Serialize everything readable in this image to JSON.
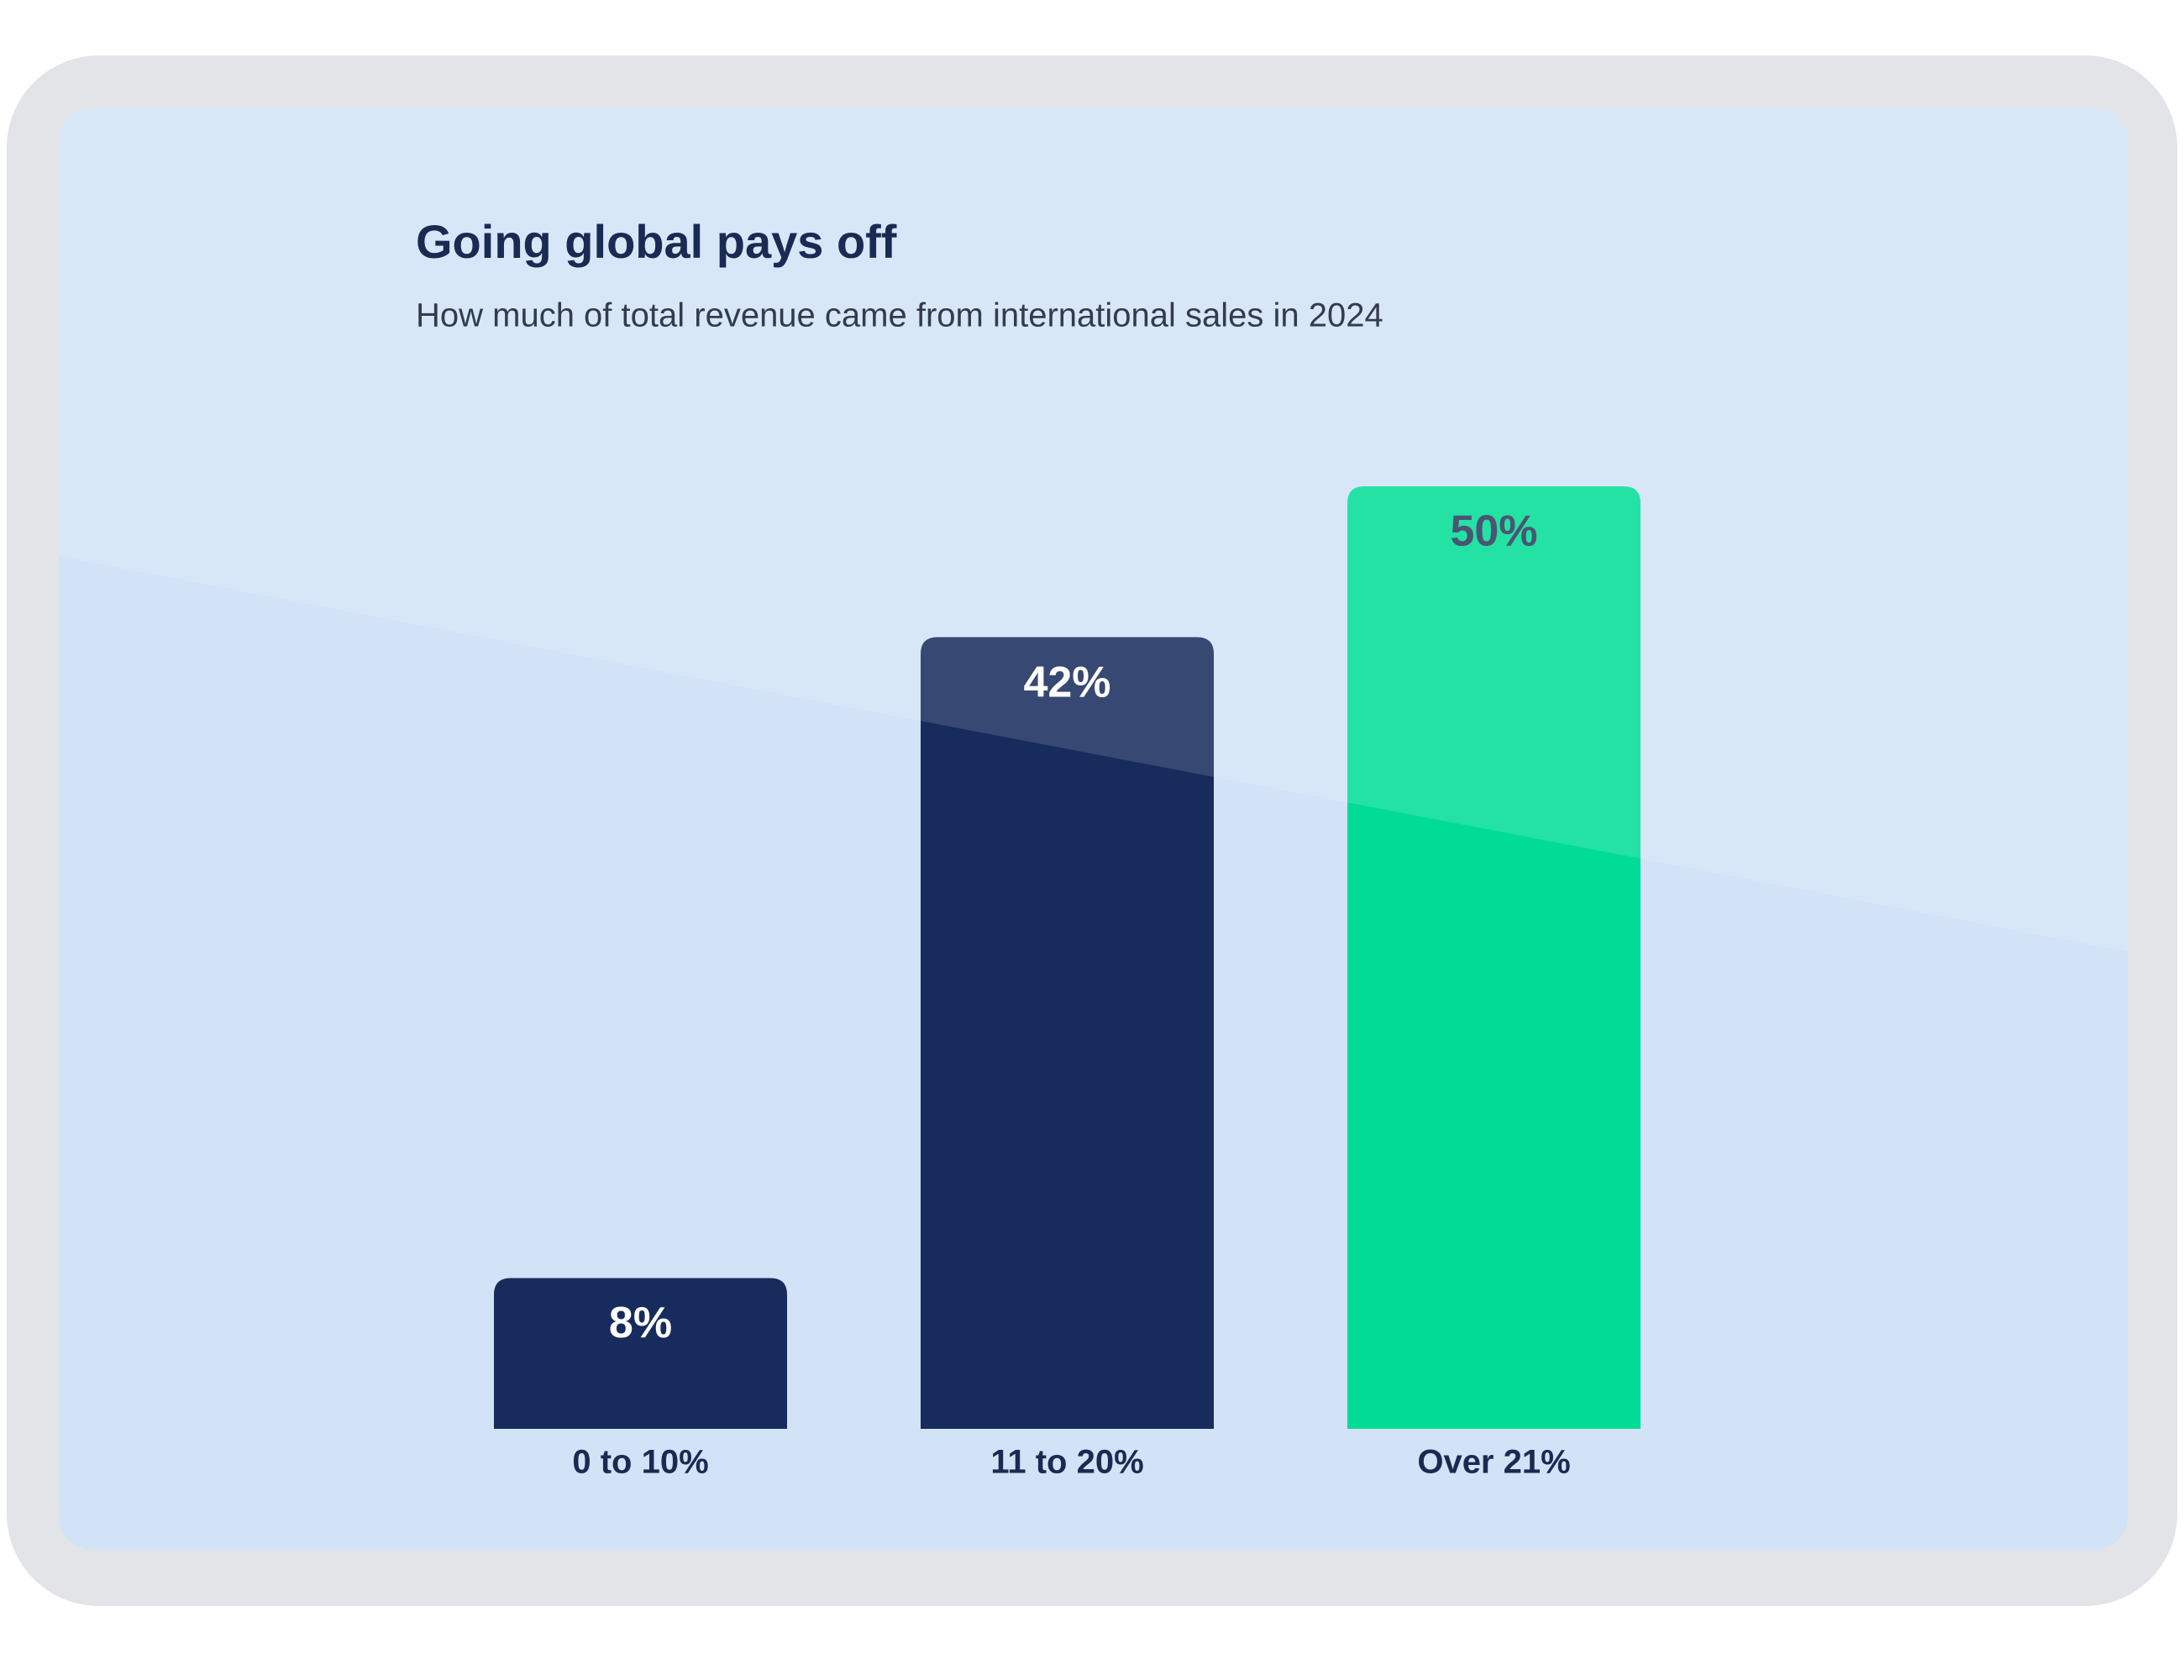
{
  "chart_data": {
    "type": "bar",
    "title": "Going global pays off",
    "subtitle": "How much of total revenue came from international sales in 2024",
    "categories": [
      "0 to 10%",
      "11 to 20%",
      "Over 21%"
    ],
    "values": [
      8,
      42,
      50
    ],
    "value_labels": [
      "8%",
      "42%",
      "50%"
    ],
    "colors": [
      "#172b5c",
      "#172b5c",
      "#00dc96"
    ]
  }
}
